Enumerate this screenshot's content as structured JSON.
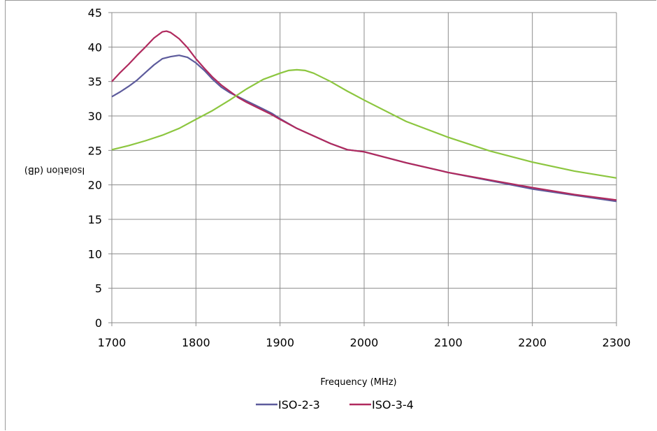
{
  "chart_data": {
    "type": "line",
    "title": "",
    "xlabel": "Frequency (MHz)",
    "ylabel": "Isolation (dB)",
    "xlim": [
      1700,
      2300
    ],
    "ylim": [
      0,
      45
    ],
    "x_ticks": [
      "1700",
      "1800",
      "1900",
      "2000",
      "2100",
      "2200",
      "2300"
    ],
    "y_ticks": [
      "0",
      "5",
      "10",
      "15",
      "20",
      "25",
      "30",
      "35",
      "40",
      "45"
    ],
    "grid": true,
    "legend_position": "bottom",
    "series": [
      {
        "name": "ISO-2-3",
        "color": "#5d5b9c",
        "x": [
          1700,
          1710,
          1720,
          1730,
          1740,
          1750,
          1760,
          1770,
          1780,
          1790,
          1800,
          1810,
          1820,
          1830,
          1840,
          1850,
          1860,
          1870,
          1880,
          1890,
          1900,
          1920,
          1940,
          1960,
          1980,
          2000,
          2050,
          2100,
          2150,
          2200,
          2250,
          2300
        ],
        "values": [
          32.8,
          33.5,
          34.3,
          35.2,
          36.3,
          37.4,
          38.3,
          38.6,
          38.8,
          38.5,
          37.7,
          36.6,
          35.3,
          34.2,
          33.4,
          32.8,
          32.2,
          31.6,
          31.0,
          30.4,
          29.6,
          28.2,
          27.1,
          26.0,
          25.1,
          24.8,
          23.2,
          21.8,
          20.6,
          19.4,
          18.5,
          17.6
        ]
      },
      {
        "name": "ISO-3-4",
        "color": "#b02a5e",
        "x": [
          1700,
          1710,
          1720,
          1730,
          1740,
          1750,
          1760,
          1765,
          1770,
          1780,
          1790,
          1800,
          1810,
          1820,
          1830,
          1840,
          1850,
          1860,
          1870,
          1880,
          1890,
          1900,
          1920,
          1940,
          1960,
          1980,
          2000,
          2050,
          2100,
          2150,
          2200,
          2250,
          2300
        ],
        "values": [
          35.0,
          36.3,
          37.5,
          38.8,
          40.0,
          41.3,
          42.2,
          42.3,
          42.1,
          41.2,
          39.9,
          38.3,
          36.9,
          35.6,
          34.5,
          33.6,
          32.7,
          32.0,
          31.4,
          30.8,
          30.2,
          29.5,
          28.2,
          27.1,
          26.0,
          25.1,
          24.8,
          23.2,
          21.8,
          20.7,
          19.6,
          18.6,
          17.8
        ]
      },
      {
        "name": "",
        "color": "#8cc63f",
        "x": [
          1700,
          1720,
          1740,
          1760,
          1780,
          1800,
          1820,
          1840,
          1860,
          1880,
          1900,
          1910,
          1920,
          1930,
          1940,
          1960,
          1980,
          2000,
          2050,
          2100,
          2150,
          2200,
          2250,
          2300
        ],
        "values": [
          25.1,
          25.7,
          26.4,
          27.2,
          28.2,
          29.5,
          30.8,
          32.3,
          33.9,
          35.3,
          36.2,
          36.6,
          36.7,
          36.6,
          36.2,
          35.0,
          33.6,
          32.3,
          29.2,
          26.9,
          24.9,
          23.3,
          22.0,
          21.0
        ]
      }
    ]
  }
}
